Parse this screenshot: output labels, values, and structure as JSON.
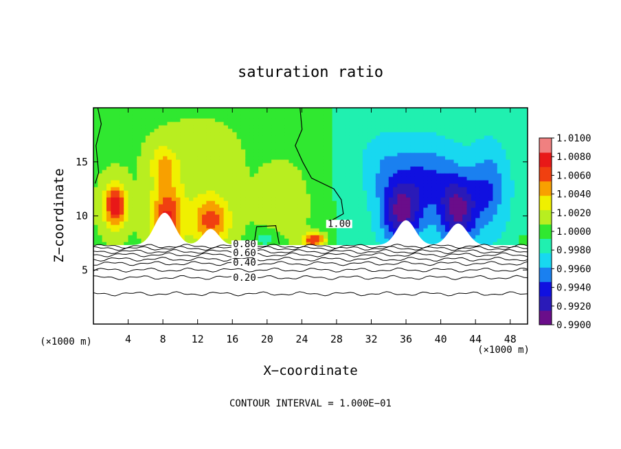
{
  "chart_data": {
    "type": "heatmap",
    "title": "saturation ratio",
    "xlabel": "X−coordinate",
    "ylabel": "Z−coordinate",
    "x_unit": "(×1000 m)",
    "x_unit_right": "(×1000 m)",
    "xlim": [
      0,
      50
    ],
    "ylim": [
      0,
      20
    ],
    "x_ticks": [
      4,
      8,
      12,
      16,
      20,
      24,
      28,
      32,
      36,
      40,
      44,
      48
    ],
    "x_tick_labels": [
      "4",
      "8",
      "12",
      "16",
      "20",
      "24",
      "28",
      "32",
      "36",
      "40",
      "44",
      "48"
    ],
    "y_ticks": [
      5,
      10,
      15
    ],
    "y_tick_labels": [
      "5",
      "10",
      "15"
    ],
    "contour_interval_label": "CONTOUR INTERVAL = 1.000E−01",
    "contour_labels": [
      {
        "text": "0.80",
        "x": 17.4,
        "z": 7.1
      },
      {
        "text": "0.60",
        "x": 17.4,
        "z": 6.3
      },
      {
        "text": "0.40",
        "x": 17.4,
        "z": 5.4
      },
      {
        "text": "0.20",
        "x": 17.4,
        "z": 4.0
      },
      {
        "text": "1.00",
        "x": 28.3,
        "z": 9.0
      }
    ],
    "colorbar": {
      "min": 0.99,
      "max": 1.01,
      "tick_labels": [
        "1.0100",
        "1.0080",
        "1.0060",
        "1.0040",
        "1.0020",
        "1.0000",
        "0.9980",
        "0.9960",
        "0.9940",
        "0.9920",
        "0.9900"
      ],
      "colors": [
        "#6a0d8a",
        "#2a1ab8",
        "#1010e0",
        "#1a80f0",
        "#18d8f0",
        "#20f0b0",
        "#30e830",
        "#b8ee20",
        "#f0f000",
        "#f8a000",
        "#f04010",
        "#e81818",
        "#f08080"
      ]
    },
    "cloud_base_z": 7.3,
    "anomalies": [
      {
        "x": 2.5,
        "z": 11.0,
        "sx": 1.3,
        "sz": 2.0,
        "amp": 0.0075
      },
      {
        "x": 8.5,
        "z": 10.0,
        "sx": 1.8,
        "sz": 3.0,
        "amp": 0.0065
      },
      {
        "x": 8.0,
        "z": 14.8,
        "sx": 1.5,
        "sz": 1.8,
        "amp": 0.003
      },
      {
        "x": 13.5,
        "z": 9.6,
        "sx": 2.2,
        "sz": 2.2,
        "amp": 0.0055
      },
      {
        "x": 12.0,
        "z": 15.0,
        "sx": 4.0,
        "sz": 3.0,
        "amp": 0.0012
      },
      {
        "x": 25.5,
        "z": 7.8,
        "sx": 1.3,
        "sz": 0.7,
        "amp": 0.007
      },
      {
        "x": 22.5,
        "z": 11.0,
        "sx": 3.0,
        "sz": 3.5,
        "amp": 0.0015
      },
      {
        "x": 35.5,
        "z": 10.3,
        "sx": 2.3,
        "sz": 2.8,
        "amp": -0.007
      },
      {
        "x": 42.0,
        "z": 10.5,
        "sx": 2.2,
        "sz": 3.0,
        "amp": -0.007
      },
      {
        "x": 38.5,
        "z": 13.5,
        "sx": 3.5,
        "sz": 3.0,
        "amp": -0.0035
      },
      {
        "x": 45.5,
        "z": 12.5,
        "sx": 2.0,
        "sz": 3.5,
        "amp": -0.0035
      },
      {
        "x": 33.5,
        "z": 14.5,
        "sx": 3.0,
        "sz": 3.0,
        "amp": -0.0018
      },
      {
        "x": 20.0,
        "z": 7.9,
        "sx": 1.6,
        "sz": 0.8,
        "amp": -0.0022
      },
      {
        "x": 49.5,
        "z": 7.9,
        "sx": 0.8,
        "sz": 0.9,
        "amp": 0.0015
      }
    ],
    "white_humps": [
      {
        "x": 8.2,
        "h": 3.0,
        "w": 1.6
      },
      {
        "x": 13.5,
        "h": 1.5,
        "w": 1.3
      },
      {
        "x": 36.0,
        "h": 2.3,
        "w": 1.5
      },
      {
        "x": 42.0,
        "h": 2.0,
        "w": 1.5
      }
    ],
    "isolines_z": [
      7.2,
      7.0,
      6.7,
      6.4,
      6.0,
      5.6,
      5.0,
      4.3,
      2.8
    ]
  }
}
